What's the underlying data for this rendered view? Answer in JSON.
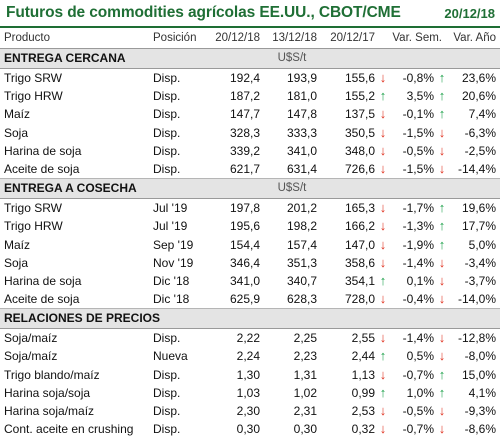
{
  "header": {
    "title": "Futuros de commodities agrícolas EE.UU., CBOT/CME",
    "date": "20/12/18"
  },
  "columns": {
    "producto": "Producto",
    "posicion": "Posición",
    "d1": "20/12/18",
    "d2": "13/12/18",
    "d3": "20/12/17",
    "sem": "Var. Sem.",
    "anio": "Var. Año"
  },
  "sections": [
    {
      "title": "ENTREGA CERCANA",
      "unit": "U$S/t",
      "rows": [
        {
          "producto": "Trigo SRW",
          "posicion": "Disp.",
          "d1": "192,4",
          "d2": "193,9",
          "d3": "155,6",
          "a1": "down",
          "sem": "-0,8%",
          "a2": "up",
          "anio": "23,6%"
        },
        {
          "producto": "Trigo HRW",
          "posicion": "Disp.",
          "d1": "187,2",
          "d2": "181,0",
          "d3": "155,2",
          "a1": "up",
          "sem": "3,5%",
          "a2": "up",
          "anio": "20,6%"
        },
        {
          "producto": "Maíz",
          "posicion": "Disp.",
          "d1": "147,7",
          "d2": "147,8",
          "d3": "137,5",
          "a1": "down",
          "sem": "-0,1%",
          "a2": "up",
          "anio": "7,4%"
        },
        {
          "producto": "Soja",
          "posicion": "Disp.",
          "d1": "328,3",
          "d2": "333,3",
          "d3": "350,5",
          "a1": "down",
          "sem": "-1,5%",
          "a2": "down",
          "anio": "-6,3%"
        },
        {
          "producto": "Harina de soja",
          "posicion": "Disp.",
          "d1": "339,2",
          "d2": "341,0",
          "d3": "348,0",
          "a1": "down",
          "sem": "-0,5%",
          "a2": "down",
          "anio": "-2,5%"
        },
        {
          "producto": "Aceite de soja",
          "posicion": "Disp.",
          "d1": "621,7",
          "d2": "631,4",
          "d3": "726,6",
          "a1": "down",
          "sem": "-1,5%",
          "a2": "down",
          "anio": "-14,4%"
        }
      ]
    },
    {
      "title": "ENTREGA A COSECHA",
      "unit": "U$S/t",
      "rows": [
        {
          "producto": "Trigo SRW",
          "posicion": "Jul '19",
          "d1": "197,8",
          "d2": "201,2",
          "d3": "165,3",
          "a1": "down",
          "sem": "-1,7%",
          "a2": "up",
          "anio": "19,6%"
        },
        {
          "producto": "Trigo HRW",
          "posicion": "Jul '19",
          "d1": "195,6",
          "d2": "198,2",
          "d3": "166,2",
          "a1": "down",
          "sem": "-1,3%",
          "a2": "up",
          "anio": "17,7%"
        },
        {
          "producto": "Maíz",
          "posicion": "Sep '19",
          "d1": "154,4",
          "d2": "157,4",
          "d3": "147,0",
          "a1": "down",
          "sem": "-1,9%",
          "a2": "up",
          "anio": "5,0%"
        },
        {
          "producto": "Soja",
          "posicion": "Nov '19",
          "d1": "346,4",
          "d2": "351,3",
          "d3": "358,6",
          "a1": "down",
          "sem": "-1,4%",
          "a2": "down",
          "anio": "-3,4%"
        },
        {
          "producto": "Harina de soja",
          "posicion": "Dic '18",
          "d1": "341,0",
          "d2": "340,7",
          "d3": "354,1",
          "a1": "up",
          "sem": "0,1%",
          "a2": "down",
          "anio": "-3,7%"
        },
        {
          "producto": "Aceite de soja",
          "posicion": "Dic '18",
          "d1": "625,9",
          "d2": "628,3",
          "d3": "728,0",
          "a1": "down",
          "sem": "-0,4%",
          "a2": "down",
          "anio": "-14,0%"
        }
      ]
    },
    {
      "title": "RELACIONES DE PRECIOS",
      "unit": "",
      "rows": [
        {
          "producto": "Soja/maíz",
          "posicion": "Disp.",
          "d1": "2,22",
          "d2": "2,25",
          "d3": "2,55",
          "a1": "down",
          "sem": "-1,4%",
          "a2": "down",
          "anio": "-12,8%"
        },
        {
          "producto": "Soja/maíz",
          "posicion": "Nueva",
          "d1": "2,24",
          "d2": "2,23",
          "d3": "2,44",
          "a1": "up",
          "sem": "0,5%",
          "a2": "down",
          "anio": "-8,0%"
        },
        {
          "producto": "Trigo blando/maíz",
          "posicion": "Disp.",
          "d1": "1,30",
          "d2": "1,31",
          "d3": "1,13",
          "a1": "down",
          "sem": "-0,7%",
          "a2": "up",
          "anio": "15,0%"
        },
        {
          "producto": "Harina soja/soja",
          "posicion": "Disp.",
          "d1": "1,03",
          "d2": "1,02",
          "d3": "0,99",
          "a1": "up",
          "sem": "1,0%",
          "a2": "up",
          "anio": "4,1%"
        },
        {
          "producto": "Harina soja/maíz",
          "posicion": "Disp.",
          "d1": "2,30",
          "d2": "2,31",
          "d3": "2,53",
          "a1": "down",
          "sem": "-0,5%",
          "a2": "down",
          "anio": "-9,3%"
        },
        {
          "producto": "Cont. aceite en crushing",
          "posicion": "Disp.",
          "d1": "0,30",
          "d2": "0,30",
          "d3": "0,32",
          "a1": "down",
          "sem": "-0,7%",
          "a2": "down",
          "anio": "-8,6%"
        }
      ]
    }
  ],
  "colors": {
    "title": "#1f6f35",
    "up": "#1fa14b",
    "down": "#e0301e",
    "section_bg": "#e4e4e4"
  }
}
